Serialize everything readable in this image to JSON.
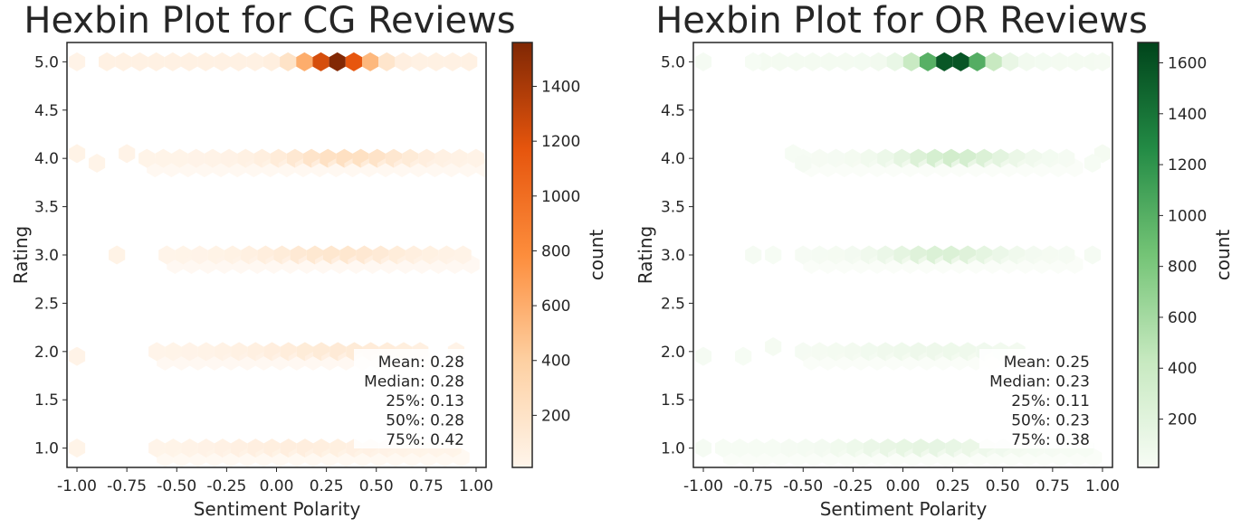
{
  "chart_data": [
    {
      "type": "hexbin",
      "title": "Hexbin Plot for CG Reviews",
      "xlabel": "Sentiment Polarity",
      "ylabel": "Rating",
      "colorbar_label": "count",
      "colormap": "Oranges",
      "colormap_stops": [
        "#fff5eb",
        "#fdd0a2",
        "#fd8d3c",
        "#e6550d",
        "#7f2704"
      ],
      "xlim": [
        -1.05,
        1.05
      ],
      "ylim": [
        0.8,
        5.2
      ],
      "xticks": [
        "-1.00",
        "-0.75",
        "-0.50",
        "-0.25",
        "0.00",
        "0.25",
        "0.50",
        "0.75",
        "1.00"
      ],
      "yticks": [
        "1.0",
        "1.5",
        "2.0",
        "2.5",
        "3.0",
        "3.5",
        "4.0",
        "4.5",
        "5.0"
      ],
      "colorbar_range": [
        10,
        1560
      ],
      "colorbar_ticks": [
        "200",
        "400",
        "600",
        "800",
        "1000",
        "1200",
        "1400"
      ],
      "stats": [
        "Mean: 0.28",
        "Median: 0.28",
        "25%: 0.13",
        "50%: 0.28",
        "75%: 0.42"
      ],
      "rows": [
        {
          "rating": 5.0,
          "x_from": -0.85,
          "x_to": 1.0,
          "peak_x": 0.3,
          "peak": 1550,
          "spread": 0.16,
          "base": 50
        },
        {
          "rating": 4.0,
          "x_from": -0.65,
          "x_to": 1.0,
          "peak_x": 0.35,
          "peak": 230,
          "spread": 0.35,
          "base": 25
        },
        {
          "rating": 3.0,
          "x_from": -0.55,
          "x_to": 0.95,
          "peak_x": 0.3,
          "peak": 160,
          "spread": 0.4,
          "base": 20
        },
        {
          "rating": 2.0,
          "x_from": -0.6,
          "x_to": 0.75,
          "peak_x": 0.3,
          "peak": 120,
          "spread": 0.45,
          "base": 20
        },
        {
          "rating": 1.0,
          "x_from": -0.6,
          "x_to": 0.95,
          "peak_x": 0.1,
          "peak": 80,
          "spread": 0.45,
          "base": 15
        }
      ],
      "outliers": [
        {
          "x": -1.0,
          "y": 5.0,
          "v": 30
        },
        {
          "x": -1.0,
          "y": 4.05,
          "v": 35
        },
        {
          "x": -0.9,
          "y": 3.95,
          "v": 25
        },
        {
          "x": -0.75,
          "y": 4.05,
          "v": 30
        },
        {
          "x": -0.8,
          "y": 3.0,
          "v": 35
        },
        {
          "x": -1.0,
          "y": 1.95,
          "v": 30
        },
        {
          "x": -1.0,
          "y": 1.0,
          "v": 25
        },
        {
          "x": 0.9,
          "y": 2.0,
          "v": 30
        }
      ]
    },
    {
      "type": "hexbin",
      "title": "Hexbin Plot for OR Reviews",
      "xlabel": "Sentiment Polarity",
      "ylabel": "Rating",
      "colorbar_label": "count",
      "colormap": "Greens",
      "colormap_stops": [
        "#f7fcf5",
        "#c7e9c0",
        "#74c476",
        "#238b45",
        "#00441b"
      ],
      "xlim": [
        -1.05,
        1.05
      ],
      "ylim": [
        0.8,
        5.2
      ],
      "xticks": [
        "-1.00",
        "-0.75",
        "-0.50",
        "-0.25",
        "0.00",
        "0.25",
        "0.50",
        "0.75",
        "1.00"
      ],
      "yticks": [
        "1.0",
        "1.5",
        "2.0",
        "2.5",
        "3.0",
        "3.5",
        "4.0",
        "4.5",
        "5.0"
      ],
      "colorbar_range": [
        10,
        1680
      ],
      "colorbar_ticks": [
        "200",
        "400",
        "600",
        "800",
        "1000",
        "1200",
        "1400",
        "1600"
      ],
      "stats": [
        "Mean: 0.25",
        "Median: 0.23",
        "25%: 0.11",
        "50%: 0.23",
        "75%: 0.38"
      ],
      "rows": [
        {
          "rating": 5.0,
          "x_from": -0.7,
          "x_to": 1.0,
          "peak_x": 0.25,
          "peak": 1670,
          "spread": 0.17,
          "base": 40
        },
        {
          "rating": 4.0,
          "x_from": -0.5,
          "x_to": 0.9,
          "peak_x": 0.25,
          "peak": 330,
          "spread": 0.3,
          "base": 20
        },
        {
          "rating": 3.0,
          "x_from": -0.5,
          "x_to": 0.9,
          "peak_x": 0.2,
          "peak": 260,
          "spread": 0.3,
          "base": 20
        },
        {
          "rating": 2.0,
          "x_from": -0.5,
          "x_to": 0.65,
          "peak_x": 0.15,
          "peak": 90,
          "spread": 0.45,
          "base": 15
        },
        {
          "rating": 1.0,
          "x_from": -0.9,
          "x_to": 0.95,
          "peak_x": 0.1,
          "peak": 160,
          "spread": 0.4,
          "base": 15
        }
      ],
      "outliers": [
        {
          "x": -1.0,
          "y": 5.0,
          "v": 25
        },
        {
          "x": -0.75,
          "y": 5.0,
          "v": 20
        },
        {
          "x": -0.75,
          "y": 3.0,
          "v": 25
        },
        {
          "x": -0.65,
          "y": 3.0,
          "v": 20
        },
        {
          "x": -1.0,
          "y": 1.95,
          "v": 25
        },
        {
          "x": -0.8,
          "y": 1.95,
          "v": 20
        },
        {
          "x": -0.65,
          "y": 2.05,
          "v": 30
        },
        {
          "x": -1.0,
          "y": 1.0,
          "v": 25
        },
        {
          "x": 1.0,
          "y": 5.0,
          "v": 30
        },
        {
          "x": 1.0,
          "y": 4.05,
          "v": 30
        },
        {
          "x": -0.55,
          "y": 4.05,
          "v": 20
        },
        {
          "x": -0.5,
          "y": 3.95,
          "v": 25
        },
        {
          "x": 0.95,
          "y": 3.0,
          "v": 25
        },
        {
          "x": 0.95,
          "y": 3.95,
          "v": 20
        }
      ]
    }
  ]
}
